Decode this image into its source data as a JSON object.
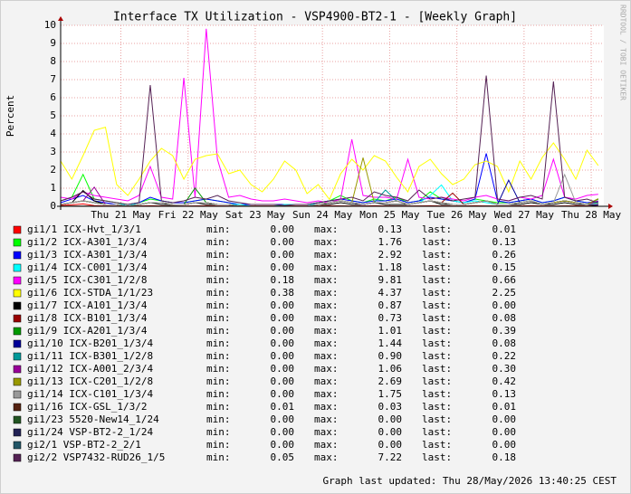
{
  "chart_data": {
    "type": "line",
    "title": "Interface TX Utilization - VSP4900-BT2-1 - [Weekly Graph]",
    "y_label": "Percent",
    "watermark": "RRDTOOL / TOBI OETIKER",
    "footer": "Graph last updated: Thu 28/May/2026 13:40:25 CEST",
    "stat_labels": [
      "min:",
      "max:",
      "last:"
    ],
    "grid": true,
    "xlim": [
      0,
      194
    ],
    "xticks": [
      {
        "value": 21.5,
        "label": "Thu 21 May"
      },
      {
        "value": 45.5,
        "label": "Fri 22 May"
      },
      {
        "value": 69.5,
        "label": "Sat 23 May"
      },
      {
        "value": 93.5,
        "label": "Sun 24 May"
      },
      {
        "value": 117.5,
        "label": "Mon 25 May"
      },
      {
        "value": 141.5,
        "label": "Tue 26 May"
      },
      {
        "value": 165.5,
        "label": "Wed 27 May"
      },
      {
        "value": 189.5,
        "label": "Thu 28 May"
      }
    ],
    "ylim": [
      0,
      10
    ],
    "yticks": [
      0,
      1,
      2,
      3,
      4,
      5,
      6,
      7,
      8,
      9,
      10
    ],
    "x": [
      0,
      4,
      8,
      12,
      16,
      20,
      24,
      28,
      32,
      36,
      40,
      44,
      48,
      52,
      56,
      60,
      64,
      68,
      72,
      76,
      80,
      84,
      88,
      92,
      96,
      100,
      104,
      108,
      112,
      116,
      120,
      124,
      128,
      132,
      136,
      140,
      144,
      148,
      152,
      156,
      160,
      164,
      168,
      172,
      176,
      180,
      184,
      188,
      192
    ],
    "series": [
      {
        "name": "gi1/1 ICX-Hvt_1/3/1",
        "color": "#ff0000",
        "min": "0.00",
        "max": "0.13",
        "last": "0.01",
        "values": [
          0.05,
          0.08,
          0.13,
          0.04,
          0.02,
          0.01,
          0.01,
          0.02,
          0.03,
          0.02,
          0.01,
          0.01,
          0.02,
          0.03,
          0.02,
          0.01,
          0.01,
          0.01,
          0.01,
          0.01,
          0.01,
          0.01,
          0.01,
          0.02,
          0.03,
          0.02,
          0.01,
          0.02,
          0.03,
          0.02,
          0.01,
          0.01,
          0.02,
          0.03,
          0.02,
          0.01,
          0.02,
          0.03,
          0.02,
          0.01,
          0.01,
          0.02,
          0.03,
          0.02,
          0.01,
          0.02,
          0.03,
          0.02,
          0.01
        ]
      },
      {
        "name": "gi1/2 ICX-A301_1/3/4",
        "color": "#00ff00",
        "min": "0.00",
        "max": "1.76",
        "last": "0.13",
        "values": [
          0.3,
          0.5,
          1.76,
          0.4,
          0.3,
          0.2,
          0.1,
          0.2,
          0.4,
          0.3,
          0.2,
          0.2,
          0.3,
          0.4,
          0.3,
          0.2,
          0.1,
          0.1,
          0.1,
          0.1,
          0.1,
          0.1,
          0.1,
          0.2,
          0.3,
          0.6,
          0.3,
          0.2,
          0.4,
          0.3,
          0.5,
          0.2,
          0.3,
          0.8,
          0.4,
          0.3,
          0.2,
          0.4,
          0.3,
          0.2,
          0.2,
          0.3,
          0.4,
          0.2,
          0.3,
          0.5,
          0.3,
          0.2,
          0.13
        ]
      },
      {
        "name": "gi1/3 ICX-A301_1/3/4",
        "color": "#0000ff",
        "min": "0.00",
        "max": "2.92",
        "last": "0.26",
        "values": [
          0.2,
          0.4,
          0.6,
          0.3,
          0.2,
          0.1,
          0.1,
          0.2,
          0.5,
          0.3,
          0.2,
          0.2,
          0.3,
          0.4,
          0.3,
          0.2,
          0.1,
          0.1,
          0.1,
          0.1,
          0.1,
          0.1,
          0.1,
          0.2,
          0.3,
          0.4,
          0.3,
          0.2,
          0.3,
          0.3,
          0.4,
          0.2,
          0.3,
          0.5,
          0.4,
          0.3,
          0.2,
          0.4,
          2.92,
          0.3,
          0.2,
          0.3,
          0.4,
          0.2,
          0.3,
          0.5,
          0.3,
          0.2,
          0.26
        ]
      },
      {
        "name": "gi1/4 ICX-C001_1/3/4",
        "color": "#00ffff",
        "min": "0.00",
        "max": "1.18",
        "last": "0.15",
        "values": [
          0.1,
          0.2,
          0.3,
          0.2,
          0.1,
          0.1,
          0.1,
          0.1,
          0.2,
          0.2,
          0.1,
          0.1,
          0.2,
          0.2,
          0.1,
          0.1,
          0.1,
          0,
          0,
          0,
          0.1,
          0.1,
          0.1,
          0.1,
          0.2,
          0.3,
          0.2,
          0.1,
          0.2,
          0.2,
          0.3,
          0.1,
          0.2,
          0.6,
          1.18,
          0.3,
          0.2,
          0.3,
          0.2,
          0.1,
          0.1,
          0.2,
          0.3,
          0.1,
          0.2,
          0.3,
          0.2,
          0.1,
          0.15
        ]
      },
      {
        "name": "gi1/5 ICX-C301_1/2/8",
        "color": "#ff00ff",
        "min": "0.18",
        "max": "9.81",
        "last": "0.66",
        "values": [
          0.5,
          0.4,
          0.8,
          0.6,
          0.5,
          0.4,
          0.3,
          0.6,
          2.2,
          0.5,
          0.4,
          7.1,
          0.5,
          9.81,
          2.6,
          0.5,
          0.6,
          0.4,
          0.3,
          0.3,
          0.4,
          0.3,
          0.2,
          0.3,
          0.18,
          0.4,
          3.7,
          0.6,
          0.5,
          0.5,
          0.4,
          2.6,
          0.5,
          0.4,
          0.5,
          0.4,
          0.3,
          0.5,
          0.6,
          0.4,
          0.3,
          0.5,
          0.4,
          0.6,
          2.6,
          0.5,
          0.4,
          0.6,
          0.66
        ]
      },
      {
        "name": "gi1/6 ICX-STDA_1/1/23",
        "color": "#ffff00",
        "min": "0.38",
        "max": "4.37",
        "last": "2.25",
        "values": [
          2.5,
          1.5,
          2.8,
          4.2,
          4.37,
          1.2,
          0.6,
          1.5,
          2.5,
          3.2,
          2.8,
          1.5,
          2.6,
          2.8,
          2.9,
          1.8,
          2.0,
          1.2,
          0.8,
          1.5,
          2.5,
          2.0,
          0.7,
          1.2,
          0.38,
          1.8,
          2.6,
          2.0,
          2.8,
          2.5,
          1.6,
          0.8,
          2.2,
          2.6,
          1.8,
          1.2,
          1.5,
          2.3,
          2.5,
          2.2,
          0.8,
          2.5,
          1.5,
          2.7,
          3.5,
          2.6,
          1.5,
          3.1,
          2.25
        ]
      },
      {
        "name": "gi1/7 ICX-A101_1/3/4",
        "color": "#000000",
        "min": "0.00",
        "max": "0.87",
        "last": "0.00",
        "values": [
          0.1,
          0.2,
          0.87,
          0.3,
          0.1,
          0.1,
          0,
          0.1,
          0.2,
          0.1,
          0.1,
          0.1,
          0.2,
          0.1,
          0.1,
          0.1,
          0,
          0,
          0,
          0,
          0,
          0,
          0,
          0.1,
          0.1,
          0.2,
          0.1,
          0.1,
          0.2,
          0.1,
          0.1,
          0.1,
          0.2,
          0.3,
          0.1,
          0.1,
          0.1,
          0.2,
          0.3,
          0.1,
          0.1,
          0.1,
          0.2,
          0.1,
          0.1,
          0.2,
          0.1,
          0.1,
          0
        ]
      },
      {
        "name": "gi1/8 ICX-B101_1/3/4",
        "color": "#990000",
        "min": "0.00",
        "max": "0.73",
        "last": "0.08",
        "values": [
          0.1,
          0.2,
          0.3,
          0.2,
          0.1,
          0.1,
          0,
          0.1,
          0.2,
          0.2,
          0.1,
          0.1,
          0.2,
          0.2,
          0.1,
          0.1,
          0,
          0,
          0,
          0,
          0,
          0,
          0,
          0.1,
          0.2,
          0.3,
          0.2,
          0.1,
          0.2,
          0.2,
          0.3,
          0.1,
          0.2,
          0.3,
          0.2,
          0.73,
          0.1,
          0.2,
          0.3,
          0.1,
          0.1,
          0.2,
          0.3,
          0.1,
          0.2,
          0.3,
          0.2,
          0.1,
          0.08
        ]
      },
      {
        "name": "gi1/9 ICX-A201_1/3/4",
        "color": "#009900",
        "min": "0.00",
        "max": "1.01",
        "last": "0.39",
        "values": [
          0.1,
          0.2,
          0.3,
          0.2,
          0.1,
          0.1,
          0,
          0.1,
          0.2,
          0.2,
          0.1,
          0.1,
          1.01,
          0.2,
          0.1,
          0.1,
          0,
          0,
          0,
          0,
          0,
          0,
          0,
          0.1,
          0.2,
          0.3,
          0.2,
          0.1,
          0.2,
          0.2,
          0.3,
          0.1,
          0.2,
          0.3,
          0.2,
          0.1,
          0.1,
          0.2,
          0.3,
          0.1,
          0.1,
          0.2,
          0.3,
          0.1,
          0.2,
          0.3,
          0.2,
          0.1,
          0.39
        ]
      },
      {
        "name": "gi1/10 ICX-B201_1/3/4",
        "color": "#000099",
        "min": "0.00",
        "max": "1.44",
        "last": "0.08",
        "values": [
          0.1,
          0.2,
          0.3,
          0.2,
          0.1,
          0.1,
          0,
          0.1,
          0.2,
          0.2,
          0.1,
          0.1,
          0.2,
          0.2,
          0.1,
          0.1,
          0,
          0,
          0,
          0,
          0,
          0,
          0,
          0.1,
          0.2,
          0.3,
          0.2,
          0.1,
          0.2,
          0.2,
          0.3,
          0.1,
          0.2,
          0.3,
          0.2,
          0.1,
          0.1,
          0.2,
          0.3,
          0.1,
          1.44,
          0.2,
          0.3,
          0.1,
          0.2,
          0.3,
          0.2,
          0.1,
          0.08
        ]
      },
      {
        "name": "gi1/11 ICX-B301_1/2/8",
        "color": "#009999",
        "min": "0.00",
        "max": "0.90",
        "last": "0.22",
        "values": [
          0.1,
          0.2,
          0.3,
          0.2,
          0.1,
          0.1,
          0,
          0.1,
          0.2,
          0.2,
          0.1,
          0.1,
          0.2,
          0.2,
          0.1,
          0.1,
          0,
          0,
          0,
          0,
          0,
          0,
          0,
          0.1,
          0.2,
          0.3,
          0.2,
          0.1,
          0.2,
          0.9,
          0.3,
          0.1,
          0.2,
          0.3,
          0.2,
          0.1,
          0.1,
          0.2,
          0.3,
          0.1,
          0.1,
          0.2,
          0.3,
          0.1,
          0.2,
          0.3,
          0.2,
          0.1,
          0.22
        ]
      },
      {
        "name": "gi1/12 ICX-A001_2/3/4",
        "color": "#990099",
        "min": "0.00",
        "max": "1.06",
        "last": "0.30",
        "values": [
          0.1,
          0.2,
          0.3,
          1.06,
          0.1,
          0.1,
          0,
          0.1,
          0.2,
          0.2,
          0.1,
          0.1,
          0.2,
          0.2,
          0.1,
          0.1,
          0,
          0,
          0,
          0,
          0,
          0,
          0,
          0.1,
          0.2,
          0.3,
          0.2,
          0.1,
          0.2,
          0.2,
          0.3,
          0.1,
          0.2,
          0.3,
          0.2,
          0.1,
          0.1,
          0.2,
          0.3,
          0.1,
          0.1,
          0.2,
          0.3,
          0.1,
          0.2,
          0.3,
          0.2,
          0.1,
          0.3
        ]
      },
      {
        "name": "gi1/13 ICX-C201_1/2/8",
        "color": "#999900",
        "min": "0.00",
        "max": "2.69",
        "last": "0.42",
        "values": [
          0.1,
          0.2,
          0.3,
          0.2,
          0.1,
          0.1,
          0,
          0.1,
          0.2,
          0.2,
          0.1,
          0.1,
          0.2,
          0.2,
          0.1,
          0.1,
          0,
          0,
          0,
          0,
          0,
          0,
          0,
          0.1,
          0.2,
          0.3,
          0.2,
          2.69,
          0.2,
          0.2,
          0.3,
          0.1,
          0.2,
          0.3,
          0.2,
          0.1,
          0.1,
          0.2,
          0.3,
          0.1,
          0.1,
          0.2,
          0.3,
          0.1,
          0.2,
          0.3,
          0.2,
          0.1,
          0.42
        ]
      },
      {
        "name": "gi1/14 ICX-C101_1/3/4",
        "color": "#999999",
        "min": "0.00",
        "max": "1.75",
        "last": "0.13",
        "values": [
          0.1,
          0.2,
          0.3,
          0.2,
          0.1,
          0.1,
          0,
          0.1,
          0.2,
          0.2,
          0.1,
          0.1,
          0.2,
          0.2,
          0.1,
          0.1,
          0,
          0,
          0,
          0,
          0,
          0,
          0,
          0.1,
          0.2,
          0.3,
          0.2,
          0.1,
          0.2,
          0.2,
          0.3,
          0.1,
          0.2,
          0.3,
          0.2,
          0.1,
          0.1,
          0.2,
          0.3,
          0.1,
          0.1,
          0.2,
          0.3,
          0.1,
          0.2,
          1.75,
          0.2,
          0.1,
          0.13
        ]
      },
      {
        "name": "gi1/16 ICX-GSL_1/3/2",
        "color": "#552211",
        "min": "0.01",
        "max": "0.03",
        "last": "0.01",
        "values": [
          0.01,
          0.01,
          0.01,
          0.01,
          0.01,
          0.01,
          0.01,
          0.01,
          0.01,
          0.01,
          0.03,
          0.01,
          0.01,
          0.01,
          0.01,
          0.01,
          0.01,
          0.01,
          0.01,
          0.01,
          0.01,
          0.01,
          0.01,
          0.01,
          0.01,
          0.01,
          0.01,
          0.01,
          0.01,
          0.01,
          0.01,
          0.01,
          0.01,
          0.01,
          0.01,
          0.01,
          0.01,
          0.01,
          0.01,
          0.01,
          0.01,
          0.01,
          0.01,
          0.01,
          0.01,
          0.01,
          0.01,
          0.01,
          0.01
        ]
      },
      {
        "name": "gi1/23 5520-New14_1/24",
        "color": "#225522",
        "min": "0.00",
        "max": "0.00",
        "last": "0.00",
        "values": [
          0,
          0,
          0,
          0,
          0,
          0,
          0,
          0,
          0,
          0,
          0,
          0,
          0,
          0,
          0,
          0,
          0,
          0,
          0,
          0,
          0,
          0,
          0,
          0,
          0,
          0,
          0,
          0,
          0,
          0,
          0,
          0,
          0,
          0,
          0,
          0,
          0,
          0,
          0,
          0,
          0,
          0,
          0,
          0,
          0,
          0,
          0,
          0,
          0
        ]
      },
      {
        "name": "gi1/24 VSP-BT2-2_1/24",
        "color": "#222255",
        "min": "0.00",
        "max": "0.00",
        "last": "0.00",
        "values": [
          0,
          0,
          0,
          0,
          0,
          0,
          0,
          0,
          0,
          0,
          0,
          0,
          0,
          0,
          0,
          0,
          0,
          0,
          0,
          0,
          0,
          0,
          0,
          0,
          0,
          0,
          0,
          0,
          0,
          0,
          0,
          0,
          0,
          0,
          0,
          0,
          0,
          0,
          0,
          0,
          0,
          0,
          0,
          0,
          0,
          0,
          0,
          0,
          0
        ]
      },
      {
        "name": "gi2/1 VSP-BT2-2_2/1",
        "color": "#225566",
        "min": "0.00",
        "max": "0.00",
        "last": "0.00",
        "values": [
          0,
          0,
          0,
          0,
          0,
          0,
          0,
          0,
          0,
          0,
          0,
          0,
          0,
          0,
          0,
          0,
          0,
          0,
          0,
          0,
          0,
          0,
          0,
          0,
          0,
          0,
          0,
          0,
          0,
          0,
          0,
          0,
          0,
          0,
          0,
          0,
          0,
          0,
          0,
          0,
          0,
          0,
          0,
          0,
          0,
          0,
          0,
          0,
          0
        ]
      },
      {
        "name": "gi2/2 VSP7432-RUD26_1/5",
        "color": "#552255",
        "min": "0.05",
        "max": "7.22",
        "last": "0.18",
        "values": [
          0.3,
          0.5,
          0.8,
          0.4,
          0.3,
          0.2,
          0.1,
          0.2,
          6.7,
          0.3,
          0.2,
          0.3,
          0.5,
          0.4,
          0.6,
          0.3,
          0.2,
          0.1,
          0.1,
          0.1,
          0.05,
          0.1,
          0.1,
          0.2,
          0.3,
          0.4,
          0.5,
          0.3,
          0.8,
          0.6,
          0.5,
          0.3,
          0.9,
          0.4,
          0.5,
          0.3,
          0.4,
          0.5,
          7.22,
          0.4,
          0.3,
          0.5,
          0.6,
          0.4,
          6.9,
          0.5,
          0.3,
          0.4,
          0.18
        ]
      }
    ]
  }
}
